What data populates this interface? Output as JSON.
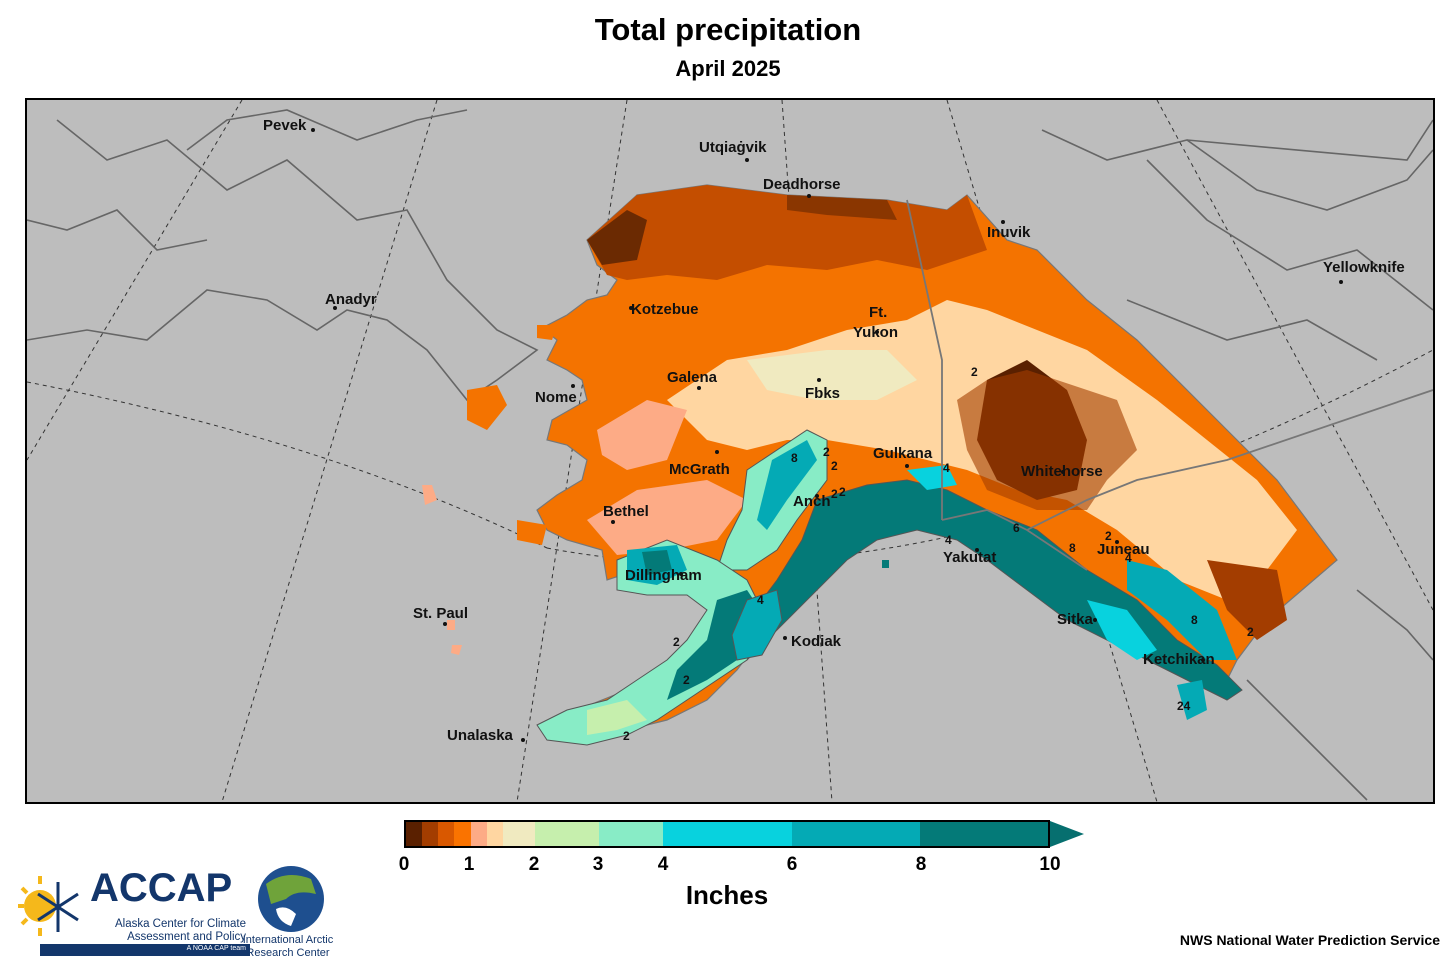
{
  "title": "Total precipitation",
  "subtitle": "April 2025",
  "cities": [
    {
      "id": "pevek",
      "name": "Pevek"
    },
    {
      "id": "utqiagvik",
      "name": "Utqiaġvik"
    },
    {
      "id": "deadhorse",
      "name": "Deadhorse"
    },
    {
      "id": "inuvik",
      "name": "Inuvik"
    },
    {
      "id": "yellowknife",
      "name": "Yellowknife"
    },
    {
      "id": "anadyr",
      "name": "Anadyr"
    },
    {
      "id": "kotzebue",
      "name": "Kotzebue"
    },
    {
      "id": "ftyukon1",
      "name": "Ft."
    },
    {
      "id": "ftyukon2",
      "name": "Yukon"
    },
    {
      "id": "galena",
      "name": "Galena"
    },
    {
      "id": "nome",
      "name": "Nome"
    },
    {
      "id": "fbks",
      "name": "Fbks"
    },
    {
      "id": "gulkana",
      "name": "Gulkana"
    },
    {
      "id": "mcgrath",
      "name": "McGrath"
    },
    {
      "id": "whitehorse",
      "name": "Whitehorse"
    },
    {
      "id": "anch",
      "name": "Anch"
    },
    {
      "id": "bethel",
      "name": "Bethel"
    },
    {
      "id": "juneau",
      "name": "Juneau"
    },
    {
      "id": "yakutat",
      "name": "Yakutat"
    },
    {
      "id": "dillingham",
      "name": "Dillingham"
    },
    {
      "id": "stpaul",
      "name": "St. Paul"
    },
    {
      "id": "sitka",
      "name": "Sitka"
    },
    {
      "id": "kodiak",
      "name": "Kodiak"
    },
    {
      "id": "ketchikan",
      "name": "Ketchikan"
    },
    {
      "id": "unalaska",
      "name": "Unalaska"
    }
  ],
  "contour_labels": [
    "2",
    "2",
    "2",
    "2",
    "4",
    "8",
    "2",
    "4",
    "6",
    "8",
    "2",
    "4",
    "8",
    "2",
    "4",
    "2",
    "2",
    "2",
    "24"
  ],
  "legend": {
    "unit": "Inches",
    "ticks": [
      "0",
      "1",
      "2",
      "3",
      "4",
      "6",
      "8",
      "10"
    ],
    "bins": [
      {
        "from": 0,
        "to": 0.25,
        "color": "#5a2000"
      },
      {
        "from": 0.25,
        "to": 0.5,
        "color": "#a33d00"
      },
      {
        "from": 0.5,
        "to": 0.75,
        "color": "#d95800"
      },
      {
        "from": 0.75,
        "to": 1,
        "color": "#fa7300"
      },
      {
        "from": 1,
        "to": 1.25,
        "color": "#fdab86"
      },
      {
        "from": 1.25,
        "to": 1.5,
        "color": "#ffd6a1"
      },
      {
        "from": 1.5,
        "to": 2,
        "color": "#f0eac0"
      },
      {
        "from": 2,
        "to": 3,
        "color": "#c6efad"
      },
      {
        "from": 3,
        "to": 4,
        "color": "#88ecc6"
      },
      {
        "from": 4,
        "to": 6,
        "color": "#08d2de"
      },
      {
        "from": 6,
        "to": 8,
        "color": "#04aab5"
      },
      {
        "from": 8,
        "to": 10,
        "color": "#047a78"
      }
    ],
    "overflow_color": "#066f6f"
  },
  "accap": {
    "name": "ACCAP",
    "line1": "Alaska Center for Climate",
    "line2": "Assessment and Policy",
    "tag": "A NOAA CAP team"
  },
  "iarc": {
    "line1": "International Arctic",
    "line2": "Research Center"
  },
  "source": "NWS National Water Prediction Service"
}
